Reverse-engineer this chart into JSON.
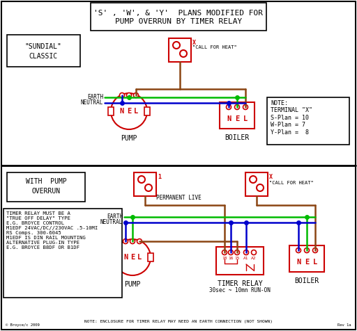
{
  "title_line1": "'S' , 'W', & 'Y'  PLANS MODIFIED FOR",
  "title_line2": "PUMP OVERRUN BY TIMER RELAY",
  "bg_color": "#ffffff",
  "red": "#cc0000",
  "green": "#00bb00",
  "blue": "#0000cc",
  "brown": "#8B4513",
  "black": "#000000",
  "note_top": "NOTE:\nTERMINAL \"X\"\nS-Plan = 10\nW-Plan = 7\nY-Plan =  8",
  "note_bottom": "TIMER RELAY MUST BE A\n\"TRUE OFF DELAY\" TYPE\nE.G. BROYCE CONTROL\nM1EDF 24VAC/DC//230VAC .5-10MI\nRS Comps. 300-6045\nM1EDF IS DIN RAIL MOUNTING\nALTERNATIVE PLUG-IN TYPE\nE.G. BROYCE B8DF OR B1DF",
  "note_footer": "NOTE: ENCLOSURE FOR TIMER RELAY MAY NEED AN EARTH CONNECTION (NOT SHOWN)"
}
